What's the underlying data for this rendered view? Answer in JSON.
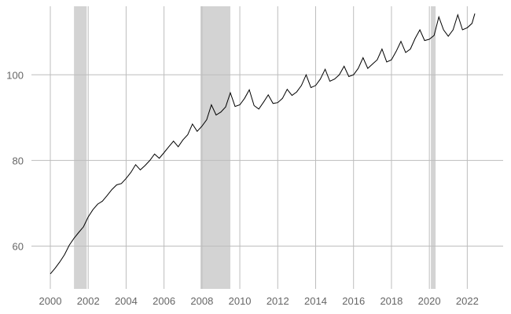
{
  "chart_data": {
    "type": "line",
    "title": "",
    "xlabel": "",
    "ylabel": "",
    "xlim": [
      2000.0,
      2022.4
    ],
    "ylim": [
      50,
      116
    ],
    "grid": true,
    "legend": "none",
    "colors": {
      "line": "#000000",
      "recession": "#d3d3d3",
      "grid": "#bdbdbd",
      "tick_text": "#666666"
    },
    "x_ticks": [
      {
        "value": 2000,
        "label": "2000"
      },
      {
        "value": 2002,
        "label": "2002"
      },
      {
        "value": 2004,
        "label": "2004"
      },
      {
        "value": 2006,
        "label": "2006"
      },
      {
        "value": 2008,
        "label": "2008"
      },
      {
        "value": 2010,
        "label": "2010"
      },
      {
        "value": 2012,
        "label": "2012"
      },
      {
        "value": 2014,
        "label": "2014"
      },
      {
        "value": 2016,
        "label": "2016"
      },
      {
        "value": 2018,
        "label": "2018"
      },
      {
        "value": 2020,
        "label": "2020"
      },
      {
        "value": 2022,
        "label": "2022"
      }
    ],
    "y_ticks": [
      {
        "value": 60,
        "label": "60"
      },
      {
        "value": 80,
        "label": "80"
      },
      {
        "value": 100,
        "label": "100"
      }
    ],
    "recessions": [
      {
        "start": 2001.25,
        "end": 2001.92
      },
      {
        "start": 2007.92,
        "end": 2009.5
      },
      {
        "start": 2020.08,
        "end": 2020.33
      }
    ],
    "series": [
      {
        "x": [
          2000.0,
          2000.25,
          2000.5,
          2000.75,
          2001.0,
          2001.25,
          2001.5,
          2001.75,
          2002.0,
          2002.25,
          2002.5,
          2002.75,
          2003.0,
          2003.25,
          2003.5,
          2003.75,
          2004.0,
          2004.25,
          2004.5,
          2004.75,
          2005.0,
          2005.25,
          2005.5,
          2005.75,
          2006.0,
          2006.25,
          2006.5,
          2006.75,
          2007.0,
          2007.25,
          2007.5,
          2007.75,
          2008.0,
          2008.25,
          2008.5,
          2008.75,
          2009.0,
          2009.25,
          2009.5,
          2009.75,
          2010.0,
          2010.25,
          2010.5,
          2010.75,
          2011.0,
          2011.25,
          2011.5,
          2011.75,
          2012.0,
          2012.25,
          2012.5,
          2012.75,
          2013.0,
          2013.25,
          2013.5,
          2013.75,
          2014.0,
          2014.25,
          2014.5,
          2014.75,
          2015.0,
          2015.25,
          2015.5,
          2015.75,
          2016.0,
          2016.25,
          2016.5,
          2016.75,
          2017.0,
          2017.25,
          2017.5,
          2017.75,
          2018.0,
          2018.25,
          2018.5,
          2018.75,
          2019.0,
          2019.25,
          2019.5,
          2019.75,
          2020.0,
          2020.25,
          2020.5,
          2020.75,
          2021.0,
          2021.25,
          2021.5,
          2021.75,
          2022.0,
          2022.25,
          2022.4
        ],
        "values": [
          53.5,
          54.8,
          56.3,
          58.0,
          60.2,
          61.8,
          63.2,
          64.5,
          66.8,
          68.5,
          69.8,
          70.5,
          71.8,
          73.2,
          74.3,
          74.6,
          75.8,
          77.2,
          79.0,
          77.8,
          78.8,
          80.0,
          81.5,
          80.5,
          81.8,
          83.2,
          84.5,
          83.2,
          84.8,
          86.0,
          88.5,
          86.8,
          88.0,
          89.5,
          93.0,
          90.6,
          91.3,
          92.5,
          95.8,
          92.6,
          93.0,
          94.5,
          96.5,
          92.8,
          92.0,
          93.6,
          95.3,
          93.3,
          93.5,
          94.5,
          96.6,
          95.2,
          96.0,
          97.5,
          100.0,
          97.0,
          97.5,
          99.0,
          101.3,
          98.5,
          99.0,
          100.0,
          102.0,
          99.6,
          100.0,
          101.5,
          104.0,
          101.5,
          102.5,
          103.5,
          106.0,
          103.0,
          103.5,
          105.5,
          107.8,
          105.2,
          106.0,
          108.5,
          110.5,
          108.0,
          108.3,
          109.2,
          113.5,
          110.5,
          109.0,
          110.5,
          114.0,
          110.5,
          111.0,
          112.0,
          114.3
        ]
      }
    ]
  }
}
